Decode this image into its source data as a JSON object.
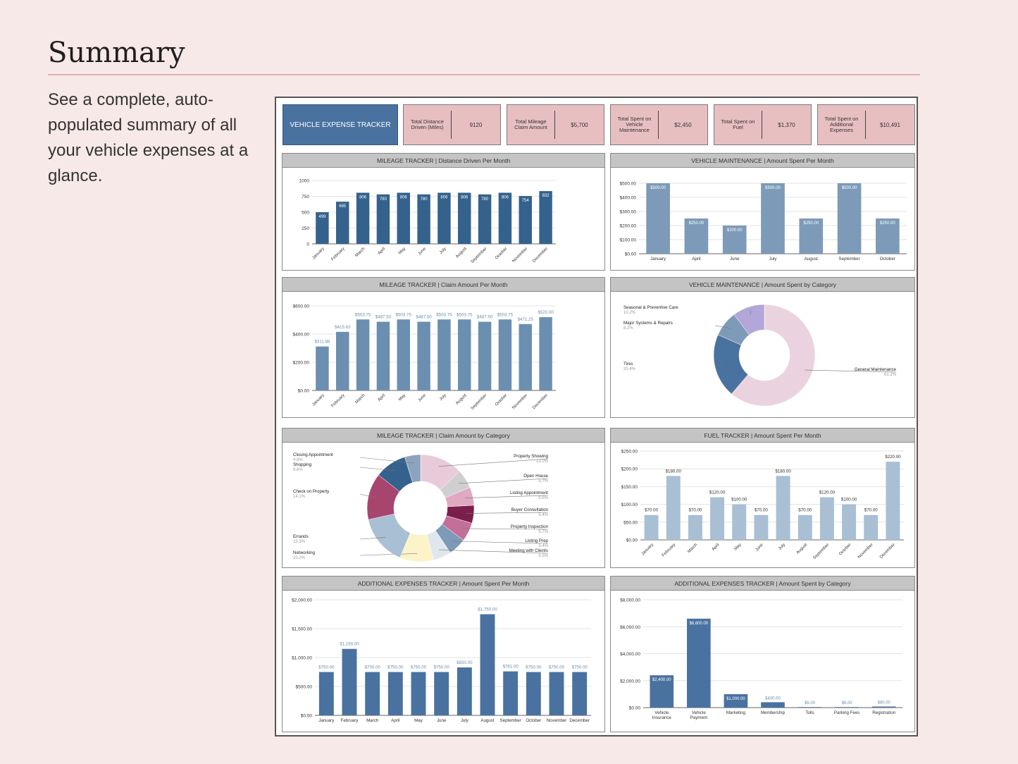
{
  "page": {
    "title": "Summary",
    "description": "See a complete, auto-populated summary of all your vehicle expenses at a glance."
  },
  "dashboard": {
    "banner": "VEHICLE EXPENSE TRACKER",
    "kpis": [
      {
        "label": "Total Distance Driven (Miles)",
        "value": "9120"
      },
      {
        "label": "Total Mileage Claim Amount",
        "value": "$5,700"
      },
      {
        "label": "Total Spent on Vehicle Maintenance",
        "value": "$2,450"
      },
      {
        "label": "Total Spent on Fuel",
        "value": "$1,370"
      },
      {
        "label": "Total Spent on Additional Expenses",
        "value": "$10,491"
      }
    ]
  },
  "colors": {
    "dark_blue": "#35628d",
    "mid_blue": "#6b8fb0",
    "steel_blue": "#7d9ab9",
    "light_blue": "#a9bfd3",
    "header_gray": "#c4c4c4",
    "kpi_pink": "#e8bfc1",
    "banner_blue": "#4a72a0"
  },
  "chart_data": [
    {
      "id": "mileage_distance",
      "title": "MILEAGE TRACKER  |  Distance Driven Per Month",
      "type": "bar",
      "color": "#35628d",
      "label_inside": true,
      "rotate_x": true,
      "categories": [
        "January",
        "February",
        "March",
        "April",
        "May",
        "June",
        "July",
        "August",
        "September",
        "October",
        "November",
        "December"
      ],
      "values": [
        499,
        665,
        806,
        780,
        806,
        780,
        806,
        806,
        780,
        806,
        754,
        832
      ],
      "labels": [
        "499",
        "665",
        "806",
        "780",
        "806",
        "780",
        "806",
        "806",
        "780",
        "806",
        "754",
        "832"
      ],
      "ylim": [
        0,
        1000
      ],
      "yticks": [
        0,
        250,
        500,
        750,
        1000
      ],
      "ytick_labels": [
        "0",
        "250",
        "500",
        "750",
        "1000"
      ]
    },
    {
      "id": "maintenance_month",
      "title": "VEHICLE MAINTENANCE  |  Amount Spent Per Month",
      "type": "bar",
      "color": "#7d9ab9",
      "label_inside": true,
      "rotate_x": false,
      "categories": [
        "January",
        "April",
        "June",
        "July",
        "August",
        "September",
        "October"
      ],
      "values": [
        500,
        250,
        200,
        500,
        250,
        500,
        250
      ],
      "labels": [
        "$500.00",
        "$250.00",
        "$200.00",
        "$500.00",
        "$250.00",
        "$500.00",
        "$250.00"
      ],
      "ylim": [
        0,
        500
      ],
      "yticks": [
        0,
        100,
        200,
        300,
        400,
        500
      ],
      "ytick_labels": [
        "$0.00",
        "$100.00",
        "$200.00",
        "$300.00",
        "$400.00",
        "$500.00"
      ]
    },
    {
      "id": "mileage_claim",
      "title": "MILEAGE TRACKER  |  Claim Amount Per Month",
      "type": "bar",
      "color": "#6b8fb0",
      "label_inside": false,
      "label_color": "#6b8fb0",
      "rotate_x": true,
      "categories": [
        "January",
        "February",
        "March",
        "April",
        "May",
        "June",
        "July",
        "August",
        "September",
        "October",
        "November",
        "December"
      ],
      "values": [
        311.88,
        415.63,
        503.75,
        487.5,
        503.75,
        487.5,
        503.75,
        503.75,
        487.5,
        503.75,
        471.25,
        520.0
      ],
      "labels": [
        "$311.88",
        "$415.63",
        "$503.75",
        "$487.50",
        "$503.75",
        "$487.50",
        "$503.75",
        "$503.75",
        "$487.50",
        "$503.75",
        "$471.25",
        "$520.00"
      ],
      "ylim": [
        0,
        600
      ],
      "yticks": [
        0,
        200,
        400,
        600
      ],
      "ytick_labels": [
        "$0.00",
        "$200.00",
        "$400.00",
        "$600.00"
      ]
    },
    {
      "id": "maintenance_category",
      "title": "VEHICLE MAINTENANCE  |  Amount Spent by Category",
      "type": "pie",
      "slices": [
        {
          "name": "General Maintenance",
          "pct": "61.2%",
          "value": 61.2,
          "color": "#ead3de"
        },
        {
          "name": "Tires",
          "pct": "20.4%",
          "value": 20.4,
          "color": "#4a72a0"
        },
        {
          "name": "Major Systems & Repairs",
          "pct": "8.2%",
          "value": 8.2,
          "color": "#7d9ab9"
        },
        {
          "name": "Seasonal & Preventive Care",
          "pct": "10.2%",
          "value": 10.2,
          "color": "#b3a6d8"
        }
      ]
    },
    {
      "id": "claim_category",
      "title": "MILEAGE TRACKER  |  Claim Amount by Category",
      "type": "pie",
      "slices": [
        {
          "name": "Property Showing",
          "pct": "13.0%",
          "value": 13.0,
          "color": "#e8cbd8"
        },
        {
          "name": "Open House",
          "pct": "5.7%",
          "value": 5.7,
          "color": "#cfcfcf"
        },
        {
          "name": "Listing Appointment",
          "pct": "5.5%",
          "value": 5.5,
          "color": "#e0a9c1"
        },
        {
          "name": "Buyer Consultation",
          "pct": "5.4%",
          "value": 5.4,
          "color": "#7a1f4b"
        },
        {
          "name": "Property Inspection",
          "pct": "5.7%",
          "value": 5.7,
          "color": "#c46f99"
        },
        {
          "name": "Listing Prep",
          "pct": "5.4%",
          "value": 5.4,
          "color": "#7d9ab9"
        },
        {
          "name": "Meeting with Clients",
          "pct": "5.5%",
          "value": 5.5,
          "color": "#dfe6ee"
        },
        {
          "name": "Networking",
          "pct": "10.2%",
          "value": 10.2,
          "color": "#fdf3c9"
        },
        {
          "name": "Errands",
          "pct": "15.3%",
          "value": 15.3,
          "color": "#a9bfd3"
        },
        {
          "name": "Check on Property",
          "pct": "14.1%",
          "value": 14.1,
          "color": "#a8456f"
        },
        {
          "name": "Shopping",
          "pct": "9.6%",
          "value": 9.6,
          "color": "#35628d"
        },
        {
          "name": "Closing Appointment",
          "pct": "4.8%",
          "value": 4.8,
          "color": "#8da3bd"
        }
      ]
    },
    {
      "id": "fuel_month",
      "title": "FUEL TRACKER  |  Amount Spent Per Month",
      "type": "bar",
      "color": "#a9bfd3",
      "label_inside": false,
      "label_color": "#333333",
      "rotate_x": true,
      "categories": [
        "January",
        "February",
        "March",
        "April",
        "May",
        "June",
        "July",
        "August",
        "September",
        "October",
        "November",
        "December"
      ],
      "values": [
        70,
        180,
        70,
        120,
        100,
        70,
        180,
        70,
        120,
        100,
        70,
        220
      ],
      "labels": [
        "$70.00",
        "$180.00",
        "$70.00",
        "$120.00",
        "$100.00",
        "$70.00",
        "$180.00",
        "$70.00",
        "$120.00",
        "$100.00",
        "$70.00",
        "$220.00"
      ],
      "ylim": [
        0,
        250
      ],
      "yticks": [
        0,
        50,
        100,
        150,
        200,
        250
      ],
      "ytick_labels": [
        "$0.00",
        "$50.00",
        "$100.00",
        "$150.00",
        "$200.00",
        "$250.00"
      ]
    },
    {
      "id": "additional_month",
      "title": "ADDITIONAL EXPENSES TRACKER  |  Amount Spent Per Month",
      "type": "bar",
      "color": "#4a72a0",
      "label_inside": false,
      "label_color": "#6b8fb0",
      "rotate_x": false,
      "categories": [
        "January",
        "February",
        "March",
        "April",
        "May",
        "June",
        "July",
        "August",
        "September",
        "October",
        "November",
        "December"
      ],
      "values": [
        750,
        1150,
        750,
        750,
        750,
        750,
        830,
        1750,
        761,
        750,
        750,
        750
      ],
      "labels": [
        "$750.00",
        "$1,150.00",
        "$750.00",
        "$750.00",
        "$750.00",
        "$750.00",
        "$830.00",
        "$1,750.00",
        "$761.00",
        "$750.00",
        "$750.00",
        "$750.00"
      ],
      "ylim": [
        0,
        2000
      ],
      "yticks": [
        0,
        500,
        1000,
        1500,
        2000
      ],
      "ytick_labels": [
        "$0.00",
        "$500.00",
        "$1,000.00",
        "$1,500.00",
        "$2,000.00"
      ]
    },
    {
      "id": "additional_category",
      "title": "ADDITIONAL EXPENSES TRACKER  |  Amount Spent by Category",
      "type": "bar",
      "color": "#4a72a0",
      "label_inside": true,
      "small_label_color": "#6b8fb0",
      "rotate_x": false,
      "categories": [
        "Vehicle Insurance",
        "Vehicle Payment",
        "Marketing",
        "Membership",
        "Tolls",
        "Parking Fees",
        "Registration"
      ],
      "values": [
        2400,
        6600,
        1000,
        400,
        5,
        6,
        80
      ],
      "labels": [
        "$2,400.00",
        "$6,600.00",
        "$1,000.00",
        "$400.00",
        "$5.00",
        "$6.00",
        "$80.00"
      ],
      "ylim": [
        0,
        8000
      ],
      "yticks": [
        0,
        2000,
        4000,
        6000,
        8000
      ],
      "ytick_labels": [
        "$0.00",
        "$2,000.00",
        "$4,000.00",
        "$6,000.00",
        "$8,000.00"
      ]
    }
  ]
}
